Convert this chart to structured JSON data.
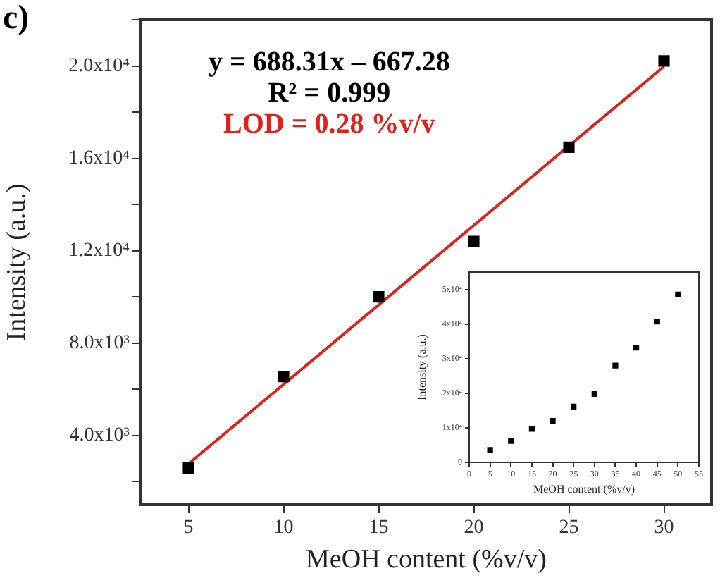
{
  "chart_data": [
    {
      "type": "scatter",
      "title": "c)",
      "xlabel": "MeOH content (%v/v)",
      "ylabel": "Intensity (a.u.)",
      "annotations": [
        "y = 688.31x – 667.28",
        "R² = 0.999",
        "LOD = 0.28 %v/v"
      ],
      "marker": "square",
      "xlim": [
        2.5,
        32.5
      ],
      "xticks": [
        5,
        10,
        15,
        20,
        25,
        30
      ],
      "ylim": [
        1000,
        22000
      ],
      "yticks": [
        {
          "value": 2000,
          "label": null
        },
        {
          "value": 4000,
          "label": "4.0x10³"
        },
        {
          "value": 6000,
          "label": null
        },
        {
          "value": 8000,
          "label": "8.0x10³"
        },
        {
          "value": 10000,
          "label": null
        },
        {
          "value": 12000,
          "label": "1.2x10⁴"
        },
        {
          "value": 14000,
          "label": null
        },
        {
          "value": 16000,
          "label": "1.6x10⁴"
        },
        {
          "value": 18000,
          "label": null
        },
        {
          "value": 20000,
          "label": "2.0x10⁴"
        },
        {
          "value": 22000,
          "label": null
        }
      ],
      "series": [
        {
          "x": [
            5,
            10,
            15,
            20,
            25,
            30
          ],
          "values": [
            2590,
            6550,
            10000,
            12400,
            16480,
            20220
          ],
          "color": "#000000"
        },
        {
          "type": "line",
          "x": [
            5,
            30
          ],
          "values": [
            2770,
            19980
          ],
          "color": "#e0201b",
          "marker": "none"
        }
      ]
    },
    {
      "type": "scatter",
      "xlabel": "MeOH content (%v/v)",
      "ylabel": "Intensity (a.u.)",
      "marker": "square",
      "xlim": [
        0,
        55
      ],
      "xticks": [
        0,
        5,
        10,
        15,
        20,
        25,
        30,
        35,
        40,
        45,
        50,
        55
      ],
      "ylim": [
        0,
        55000
      ],
      "yticks": [
        0,
        {
          "value": 10000,
          "label": "1x10⁴"
        },
        {
          "value": 20000,
          "label": "2x10⁴"
        },
        {
          "value": 30000,
          "label": "3x10⁴"
        },
        {
          "value": 40000,
          "label": "4x10⁴"
        },
        {
          "value": 50000,
          "label": "5x10⁴"
        }
      ],
      "series": [
        {
          "x": [
            5,
            10,
            15,
            20,
            25,
            30,
            35,
            40,
            45,
            50
          ],
          "values": [
            3600,
            6200,
            9700,
            12000,
            16100,
            19800,
            28000,
            33200,
            40700,
            48500
          ],
          "color": "#000000"
        }
      ]
    }
  ]
}
